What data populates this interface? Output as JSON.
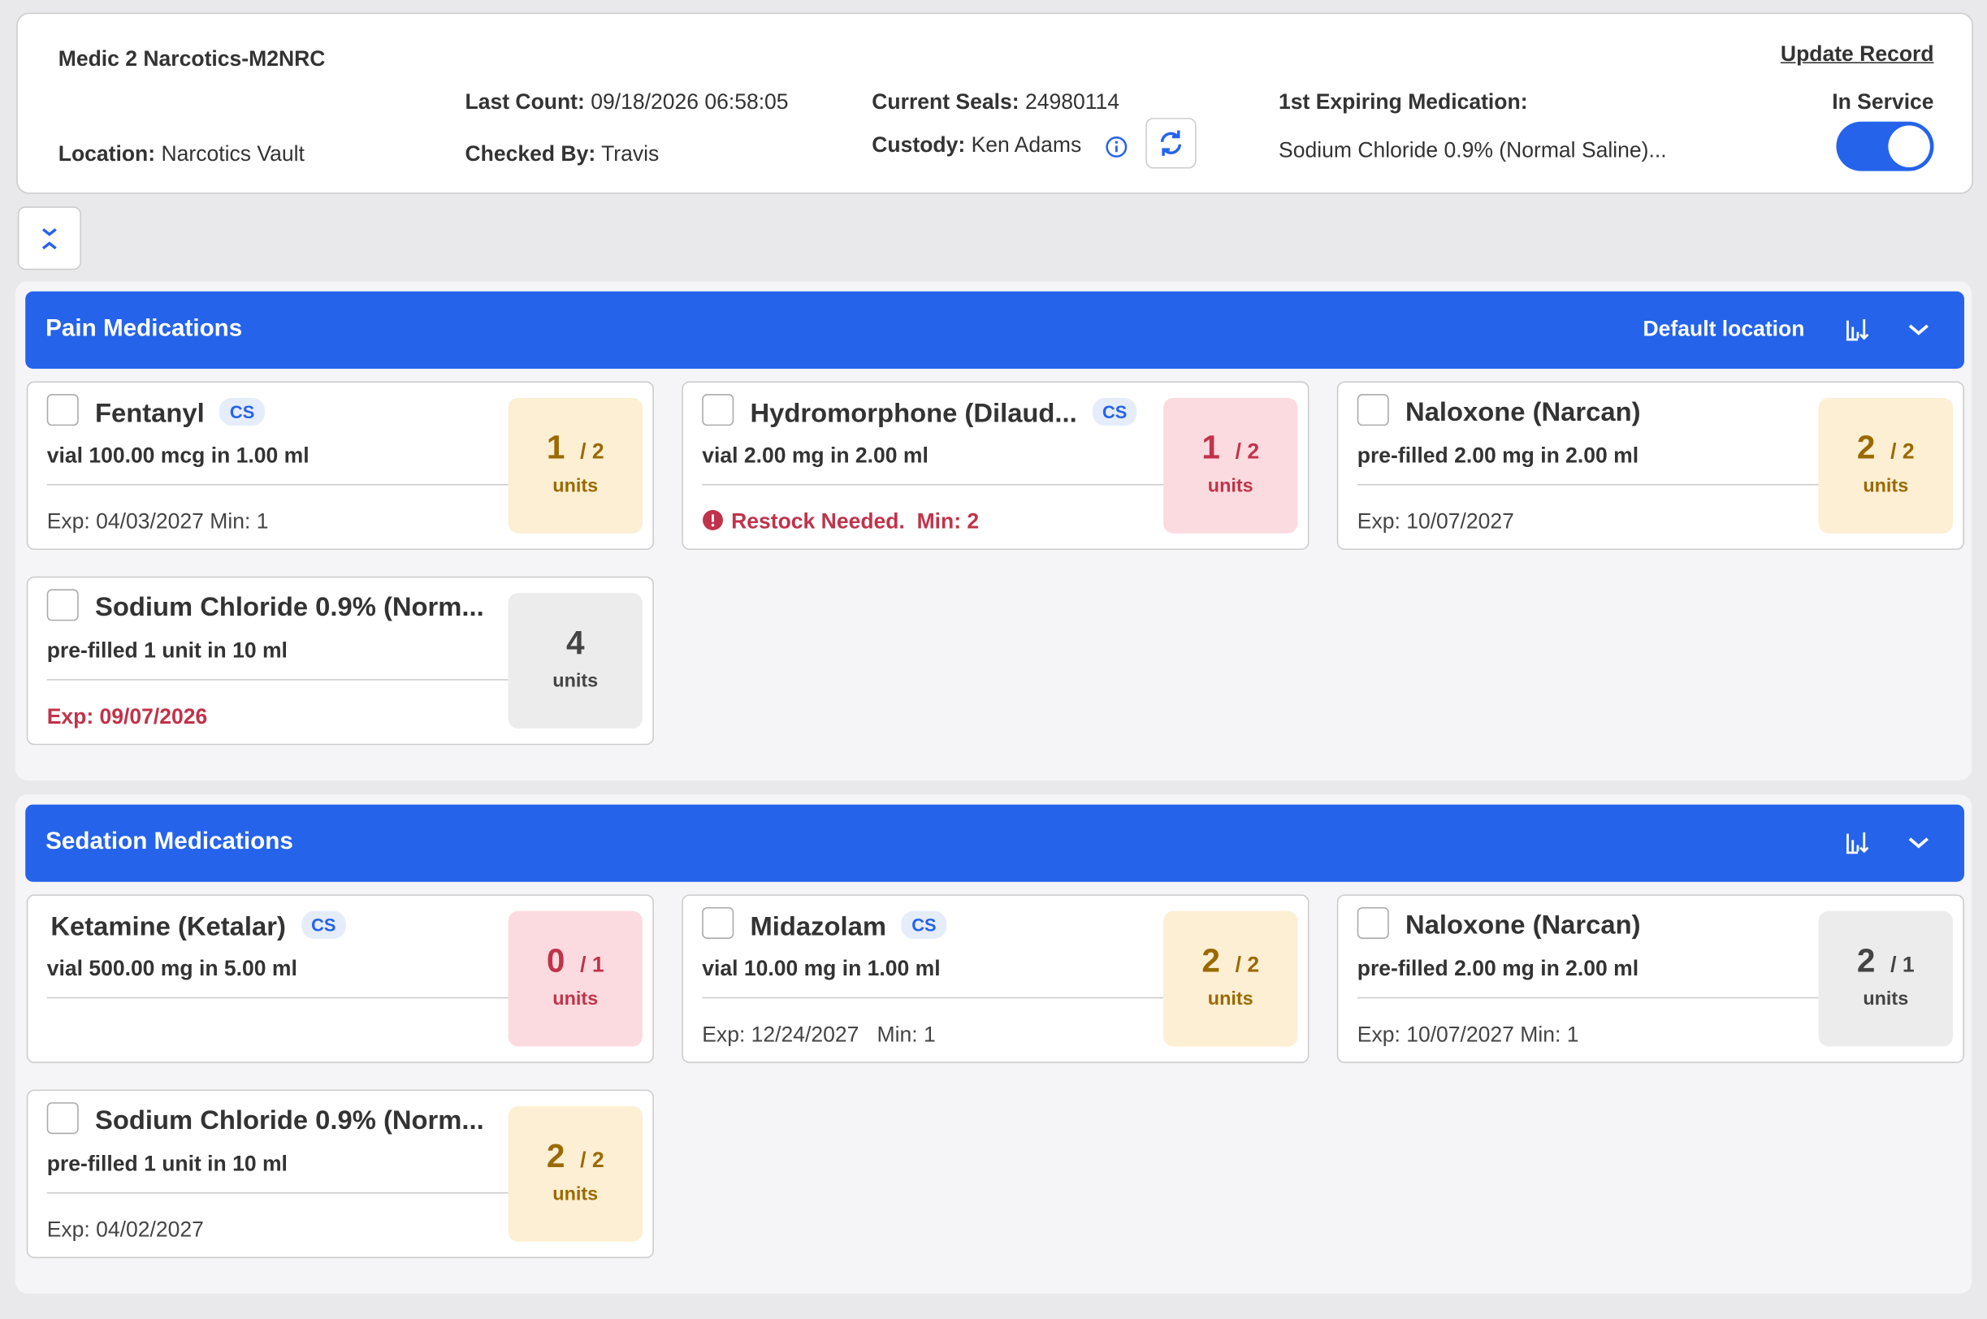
{
  "header": {
    "title": "Medic 2 Narcotics-M2NRC",
    "location_label": "Location:",
    "location": "Narcotics Vault",
    "last_count_label": "Last Count:",
    "last_count": "09/18/2026 06:58:05",
    "checked_by_label": "Checked By:",
    "checked_by": "Travis",
    "current_seals_label": "Current Seals:",
    "current_seals": "24980114",
    "custody_label": "Custody:",
    "custody": "Ken Adams",
    "first_expiring_label": "1st Expiring Medication:",
    "first_expiring": "Sodium Chloride 0.9% (Normal Saline)...",
    "update_record": "Update Record",
    "in_service_label": "In Service"
  },
  "sections": [
    {
      "title": "Pain Medications",
      "default_location": "Default location",
      "items": [
        {
          "name": "Fentanyl",
          "badge": "CS",
          "checkbox": true,
          "description": "vial 100.00 mcg in 1.00 ml",
          "note": "Exp: 04/03/2027 Min: 1",
          "note_color": "normal",
          "quantity": "1",
          "capacity": "/ 2",
          "units": "units",
          "count_color": "amber"
        },
        {
          "name": "Hydromorphone (Dilaud...",
          "badge": "CS",
          "checkbox": true,
          "description": "vial 2.00 mg in 2.00 ml",
          "note": "Restock Needed.  Min: 2",
          "note_color": "alert",
          "quantity": "1",
          "capacity": "/ 2",
          "units": "units",
          "count_color": "red"
        },
        {
          "name": "Naloxone (Narcan)",
          "checkbox": true,
          "description": "pre-filled 2.00 mg in 2.00 ml",
          "note": "Exp: 10/07/2027",
          "note_color": "normal",
          "quantity": "2",
          "capacity": "/ 2",
          "units": "units",
          "count_color": "amber"
        },
        {
          "name": "Sodium Chloride 0.9% (Norm...",
          "checkbox": true,
          "description": "pre-filled 1 unit in 10 ml",
          "note": "Exp: 09/07/2026",
          "note_color": "red",
          "quantity": "4",
          "units": "units",
          "count_color": "gray"
        }
      ]
    },
    {
      "title": "Sedation Medications",
      "items": [
        {
          "name": "Ketamine (Ketalar)",
          "badge": "CS",
          "checkbox": false,
          "description": "vial 500.00 mg in 5.00 ml",
          "quantity": "0",
          "capacity": "/ 1",
          "units": "units",
          "count_color": "red"
        },
        {
          "name": "Midazolam",
          "badge": "CS",
          "checkbox": true,
          "description": "vial 10.00 mg in 1.00 ml",
          "note": "Exp: 12/24/2027   Min: 1",
          "note_color": "normal",
          "quantity": "2",
          "capacity": "/ 2",
          "units": "units",
          "count_color": "amber"
        },
        {
          "name": "Naloxone (Narcan)",
          "checkbox": true,
          "description": "pre-filled 2.00 mg in 2.00 ml",
          "note": "Exp: 10/07/2027 Min: 1",
          "note_color": "normal",
          "quantity": "2",
          "capacity": "/ 1",
          "units": "units",
          "count_color": "gray"
        },
        {
          "name": "Sodium Chloride 0.9% (Norm...",
          "checkbox": true,
          "description": "pre-filled 1 unit in 10 ml",
          "note": "Exp: 04/02/2027",
          "note_color": "normal",
          "quantity": "2",
          "capacity": "/ 2",
          "units": "units",
          "count_color": "amber"
        }
      ]
    }
  ]
}
